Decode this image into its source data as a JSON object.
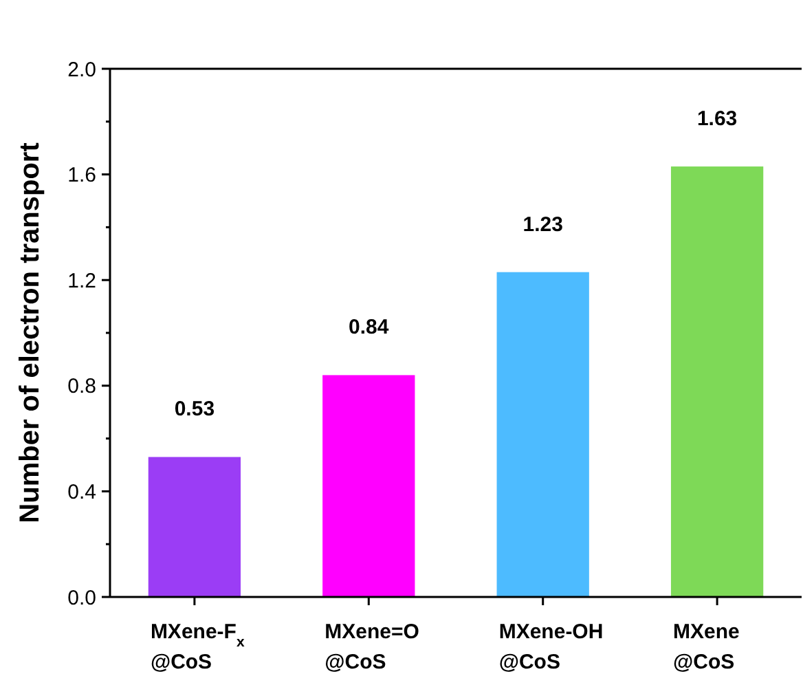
{
  "chart_data": {
    "type": "bar",
    "ylabel": "Number of electron transport",
    "categories": [
      "MXene-F$_{x}$\n@CoS",
      "MXene=O\n@CoS",
      "MXene-OH\n@CoS",
      "MXene\n@CoS"
    ],
    "values": [
      0.53,
      0.84,
      1.23,
      1.63
    ],
    "colors": [
      "#9b3df5",
      "#ff00ff",
      "#4dbbff",
      "#7ed957"
    ],
    "ylim": [
      0,
      2.0
    ],
    "yticks": [
      {
        "value": 0,
        "label": "0.0"
      },
      0.4,
      0.8,
      1.2,
      1.6,
      {
        "value": 2,
        "label": "2.0"
      }
    ],
    "data_labels": true
  }
}
